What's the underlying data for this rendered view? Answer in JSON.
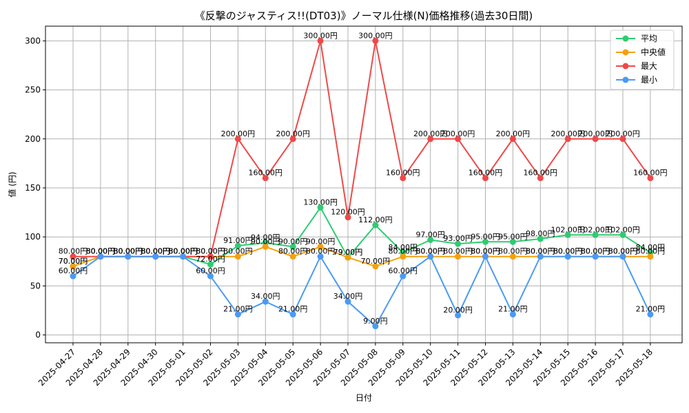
{
  "chart_data": {
    "type": "line",
    "title": "《反撃のジャスティス!!(DT03)》ノーマル仕様(N)価格推移(過去30日間)",
    "xlabel": "日付",
    "ylabel": "値 (円)",
    "ylim": [
      -8,
      315
    ],
    "yticks": [
      0,
      50,
      100,
      150,
      200,
      250,
      300
    ],
    "grid": true,
    "legend_position": "top-right",
    "value_suffix": "円",
    "categories": [
      "2025-04-27",
      "2025-04-28",
      "2025-04-29",
      "2025-04-30",
      "2025-05-01",
      "2025-05-02",
      "2025-05-03",
      "2025-05-04",
      "2025-05-05",
      "2025-05-06",
      "2025-05-07",
      "2025-05-08",
      "2025-05-09",
      "2025-05-10",
      "2025-05-11",
      "2025-05-12",
      "2025-05-13",
      "2025-05-14",
      "2025-05-15",
      "2025-05-16",
      "2025-05-17",
      "2025-05-18"
    ],
    "series": [
      {
        "name": "平均",
        "color": "#2ecc71",
        "values": [
          70,
          80,
          80,
          80,
          80,
          72,
          91,
          94,
          90,
          130,
          79,
          112,
          84,
          97,
          93,
          95,
          95,
          98,
          102,
          102,
          102,
          84
        ]
      },
      {
        "name": "中央値",
        "color": "#f5a00f",
        "values": [
          70,
          80,
          80,
          80,
          80,
          80,
          80,
          90,
          80,
          90,
          79,
          70,
          80,
          80,
          80,
          80,
          80,
          80,
          80,
          80,
          80,
          80
        ]
      },
      {
        "name": "最大",
        "color": "#f04848",
        "values": [
          80,
          80,
          80,
          80,
          80,
          80,
          200,
          160,
          200,
          300,
          120,
          300,
          160,
          200,
          200,
          160,
          200,
          160,
          200,
          200,
          200,
          160
        ]
      },
      {
        "name": "最小",
        "color": "#4a9af5",
        "values": [
          60,
          80,
          80,
          80,
          80,
          60,
          21,
          34,
          21,
          80,
          34,
          9,
          60,
          80,
          20,
          80,
          21,
          80,
          80,
          80,
          80,
          21
        ]
      }
    ]
  }
}
